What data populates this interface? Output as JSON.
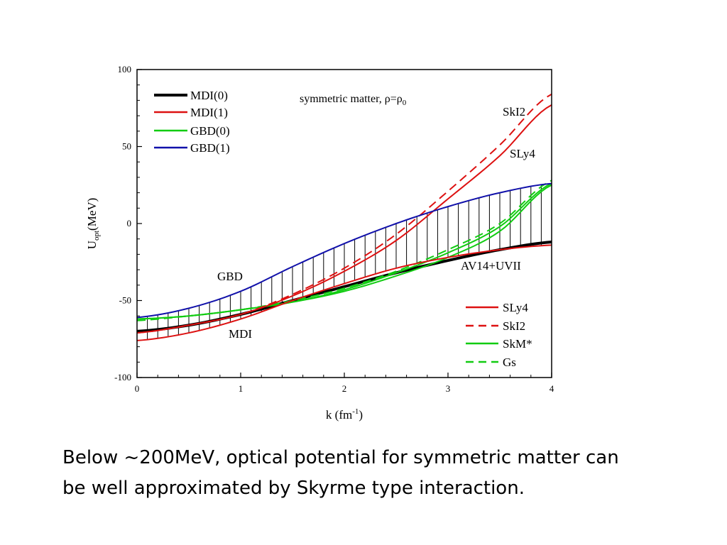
{
  "caption": {
    "line1": "Below ~200MeV, optical potential for symmetric matter can",
    "line2": "be well approximated by Skyrme type interaction."
  },
  "chart_data": {
    "type": "line",
    "title": "symmetric matter, ρ=ρ",
    "title_subscript": "0",
    "xlabel": "k (fm",
    "xlabel_sup": "-1",
    "xlabel_end": ")",
    "ylabel": "U",
    "ylabel_sub": "opt",
    "ylabel_end": "(MeV)",
    "xlim": [
      0,
      4
    ],
    "ylim": [
      -100,
      100
    ],
    "xticks": [
      0,
      1,
      2,
      3,
      4
    ],
    "yticks": [
      -100,
      -50,
      0,
      50,
      100
    ],
    "xtick_labels": [
      "0",
      "1",
      "2",
      "3",
      "4"
    ],
    "ytick_labels": [
      "-100",
      "-50",
      "0",
      "50",
      "100"
    ],
    "legend_top": [
      "MDI(0)",
      "MDI(1)",
      "GBD(0)",
      "GBD(1)"
    ],
    "legend_bottom": [
      "SLy4",
      "SkI2",
      "SkM*",
      "Gs"
    ],
    "annotations": {
      "gbd": "GBD",
      "mdi": "MDI",
      "av14": "AV14+UVII",
      "ski2": "SkI2",
      "sly4": "SLy4"
    },
    "series": [
      {
        "name": "MDI(0)",
        "color": "#000000",
        "dash": false,
        "width": 4,
        "x": [
          0,
          0.5,
          1.0,
          1.5,
          2.0,
          2.5,
          3.0,
          3.5,
          4.0
        ],
        "y": [
          -70,
          -66,
          -59,
          -50,
          -41,
          -32,
          -24,
          -17,
          -12
        ]
      },
      {
        "name": "MDI(1)",
        "color": "#dd1111",
        "dash": false,
        "width": 2,
        "x": [
          0,
          0.5,
          1.0,
          1.5,
          2.0,
          2.5,
          3.0,
          3.5,
          4.0
        ],
        "y": [
          -76,
          -71,
          -62,
          -50,
          -39,
          -29,
          -22,
          -17,
          -14
        ]
      },
      {
        "name": "GBD(0)",
        "color": "#11cc11",
        "dash": false,
        "width": 2,
        "x": [
          0,
          0.5,
          1.0,
          1.5,
          2.0,
          2.5,
          3.0,
          3.5,
          4.0
        ],
        "y": [
          -62,
          -60,
          -56,
          -51,
          -44,
          -34,
          -22,
          -5,
          25
        ]
      },
      {
        "name": "GBD(1)",
        "color": "#1111aa",
        "dash": false,
        "width": 2,
        "x": [
          0,
          0.5,
          1.0,
          1.5,
          2.0,
          2.5,
          3.0,
          3.5,
          4.0
        ],
        "y": [
          -61,
          -55,
          -44,
          -28,
          -13,
          0,
          11,
          20,
          26
        ]
      },
      {
        "name": "SLy4",
        "color": "#dd1111",
        "dash": false,
        "width": 2,
        "x": [
          0,
          0.5,
          1.0,
          1.5,
          2.0,
          2.5,
          3.0,
          3.5,
          4.0
        ],
        "y": [
          -71,
          -66,
          -59,
          -47,
          -31,
          -11,
          16,
          44,
          77
        ]
      },
      {
        "name": "SkI2",
        "color": "#dd1111",
        "dash": true,
        "width": 2,
        "x": [
          0,
          0.5,
          1.0,
          1.5,
          2.0,
          2.5,
          3.0,
          3.5,
          4.0
        ],
        "y": [
          -71,
          -66,
          -59,
          -46,
          -29,
          -7,
          21,
          51,
          84
        ]
      },
      {
        "name": "SkM*",
        "color": "#11cc11",
        "dash": false,
        "width": 2,
        "x": [
          0,
          0.5,
          1.0,
          1.5,
          2.0,
          2.5,
          3.0,
          3.5,
          4.0
        ],
        "y": [
          -62,
          -60,
          -56,
          -51,
          -43,
          -32,
          -19,
          -2,
          26
        ]
      },
      {
        "name": "Gs",
        "color": "#11cc11",
        "dash": true,
        "width": 2,
        "x": [
          0,
          0.5,
          1.0,
          1.5,
          2.0,
          2.5,
          3.0,
          3.5,
          4.0
        ],
        "y": [
          -63,
          -60,
          -56,
          -50,
          -42,
          -31,
          -17,
          0,
          28
        ]
      }
    ],
    "band": {
      "upper": "GBD(1)",
      "lower": "MDI(1)",
      "hatch_step": 0.1
    }
  }
}
